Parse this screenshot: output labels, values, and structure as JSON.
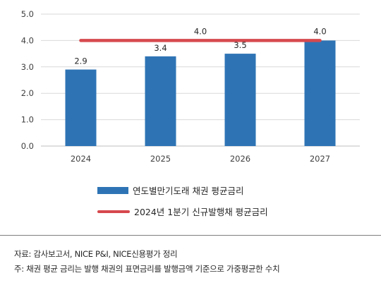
{
  "chart_data": {
    "type": "bar",
    "categories": [
      "2024",
      "2025",
      "2026",
      "2027"
    ],
    "series": [
      {
        "name": "연도별만기도래 채권 평균금리",
        "type": "bar",
        "values": [
          2.9,
          3.4,
          3.5,
          4.0
        ],
        "color": "#2e74b5"
      },
      {
        "name": "2024년 1분기 신규발행채 평균금리",
        "type": "line",
        "values": [
          4.0,
          4.0,
          4.0,
          4.0
        ],
        "color": "#d6494e"
      }
    ],
    "data_labels": [
      "2.9",
      "3.4",
      "3.5",
      "4.0"
    ],
    "line_labels": [
      "4.0"
    ],
    "yticks": [
      "0.0",
      "1.0",
      "2.0",
      "3.0",
      "4.0",
      "5.0"
    ],
    "ylim": [
      0,
      5
    ],
    "grid": true,
    "legend_position": "bottom"
  },
  "footnotes": {
    "source": "자료: 감사보고서, NICE P&I, NICE신용평가 정리",
    "note": "주: 채권 평균 금리는 발행 채권의 표면금리를 발행금액 기준으로 가중평균한 수치"
  }
}
